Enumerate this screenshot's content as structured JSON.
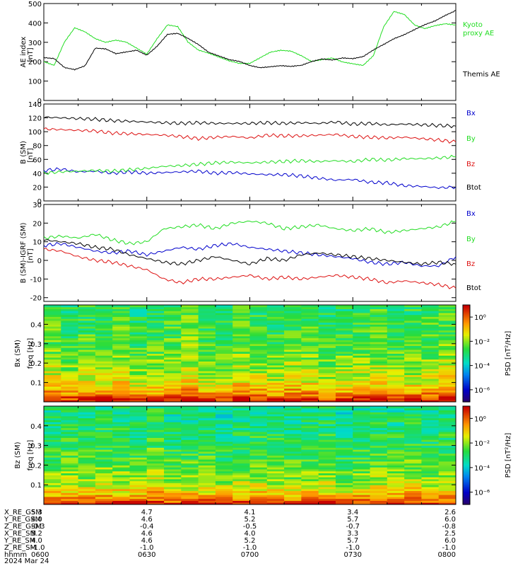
{
  "footer": {
    "rows": [
      {
        "label": "X_RE_GSM",
        "values": [
          "5.3",
          "4.7",
          "4.1",
          "3.4",
          "2.6"
        ]
      },
      {
        "label": "Y_RE_GSM",
        "values": [
          "4.0",
          "4.6",
          "5.2",
          "5.7",
          "6.0"
        ]
      },
      {
        "label": "Z_RE_GSM",
        "values": [
          "-0.3",
          "-0.4",
          "-0.5",
          "-0.7",
          "-0.8"
        ]
      },
      {
        "label": "X_RE_SM",
        "values": [
          "5.2",
          "4.6",
          "4.0",
          "3.3",
          "2.5"
        ]
      },
      {
        "label": "Y_RE_SM",
        "values": [
          "4.0",
          "4.6",
          "5.2",
          "5.7",
          "6.0"
        ]
      },
      {
        "label": "Z_RE_SM",
        "values": [
          "-1.0",
          "-1.0",
          "-1.0",
          "-1.0",
          "-1.0"
        ]
      },
      {
        "label": "hhmm",
        "values": [
          "0600",
          "0630",
          "0700",
          "0730",
          "0800"
        ]
      }
    ],
    "date": "2024 Mar 24"
  },
  "colors": {
    "black": "#000000",
    "green": "#22dd22",
    "red": "#dd1111",
    "blue": "#0000cc"
  },
  "chart_data": [
    {
      "type": "line",
      "ylabel": "AE index",
      "yunits": "[nT]",
      "ylim": [
        0,
        500
      ],
      "yticks": [
        "0",
        "100",
        "200",
        "300",
        "400",
        "500"
      ],
      "x_range_minutes": [
        0,
        120
      ],
      "series": [
        {
          "name": "Kyoto proxy AE",
          "legend_lines": [
            "Kyoto",
            "proxy AE"
          ],
          "color": "#22dd22",
          "x": [
            0,
            3,
            6,
            9,
            12,
            15,
            18,
            21,
            24,
            27,
            30,
            33,
            36,
            39,
            42,
            45,
            48,
            51,
            54,
            57,
            60,
            63,
            66,
            69,
            72,
            75,
            78,
            81,
            84,
            87,
            90,
            93,
            96,
            99,
            102,
            105,
            108,
            111,
            114,
            117,
            120
          ],
          "y": [
            200,
            180,
            300,
            375,
            355,
            320,
            300,
            310,
            300,
            270,
            240,
            320,
            390,
            380,
            300,
            260,
            245,
            225,
            205,
            190,
            190,
            220,
            250,
            260,
            255,
            230,
            200,
            210,
            220,
            200,
            190,
            180,
            230,
            380,
            460,
            445,
            390,
            370,
            385,
            395,
            390
          ]
        },
        {
          "name": "Themis AE",
          "legend_lines": [
            "Themis AE"
          ],
          "color": "#000000",
          "x": [
            0,
            3,
            6,
            9,
            12,
            15,
            18,
            21,
            24,
            27,
            30,
            33,
            36,
            39,
            42,
            45,
            48,
            51,
            54,
            57,
            60,
            63,
            66,
            69,
            72,
            75,
            78,
            81,
            84,
            87,
            90,
            93,
            96,
            99,
            102,
            105,
            108,
            111,
            114,
            117,
            120
          ],
          "y": [
            220,
            215,
            170,
            160,
            180,
            270,
            265,
            240,
            250,
            260,
            235,
            280,
            340,
            345,
            320,
            290,
            250,
            230,
            210,
            200,
            180,
            170,
            175,
            180,
            175,
            180,
            200,
            215,
            210,
            220,
            215,
            225,
            260,
            290,
            320,
            340,
            365,
            390,
            410,
            440,
            465
          ]
        }
      ]
    },
    {
      "type": "line",
      "ylabel": "B (SM)",
      "yunits": "[nT]",
      "ylim": [
        0,
        140
      ],
      "yticks": [
        "0",
        "20",
        "40",
        "60",
        "80",
        "100",
        "120",
        "140"
      ],
      "x_range_minutes": [
        0,
        120
      ],
      "series": [
        {
          "name": "Bx",
          "color": "#0000cc",
          "x": [
            0,
            5,
            10,
            15,
            20,
            25,
            30,
            35,
            40,
            45,
            50,
            55,
            60,
            65,
            70,
            75,
            80,
            85,
            90,
            95,
            100,
            105,
            110,
            115,
            120
          ],
          "y": [
            44,
            46,
            42,
            43,
            40,
            42,
            40,
            41,
            42,
            43,
            40,
            41,
            39,
            38,
            38,
            36,
            33,
            30,
            31,
            27,
            26,
            22,
            21,
            19,
            20
          ]
        },
        {
          "name": "By",
          "color": "#22dd22",
          "x": [
            0,
            5,
            10,
            15,
            20,
            25,
            30,
            35,
            40,
            45,
            50,
            55,
            60,
            65,
            70,
            75,
            80,
            85,
            90,
            95,
            100,
            105,
            110,
            115,
            120
          ],
          "y": [
            40,
            42,
            43,
            44,
            43,
            45,
            47,
            50,
            51,
            53,
            55,
            56,
            55,
            56,
            57,
            58,
            57,
            58,
            57,
            60,
            59,
            61,
            61,
            62,
            64
          ]
        },
        {
          "name": "Bz",
          "color": "#dd1111",
          "x": [
            0,
            5,
            10,
            15,
            20,
            25,
            30,
            35,
            40,
            45,
            50,
            55,
            60,
            65,
            70,
            75,
            80,
            85,
            90,
            95,
            100,
            105,
            110,
            115,
            120
          ],
          "y": [
            104,
            103,
            102,
            101,
            98,
            97,
            96,
            95,
            93,
            90,
            92,
            93,
            91,
            95,
            94,
            94,
            95,
            96,
            93,
            92,
            91,
            92,
            90,
            88,
            85
          ]
        },
        {
          "name": "Btot",
          "color": "#000000",
          "x": [
            0,
            5,
            10,
            15,
            20,
            25,
            30,
            35,
            40,
            45,
            50,
            55,
            60,
            65,
            70,
            75,
            80,
            85,
            90,
            95,
            100,
            105,
            110,
            115,
            120
          ],
          "y": [
            121,
            120,
            119,
            118,
            116,
            115,
            114,
            113,
            112,
            113,
            112,
            112,
            112,
            113,
            112,
            113,
            112,
            114,
            111,
            112,
            110,
            111,
            110,
            109,
            108
          ]
        }
      ]
    },
    {
      "type": "line",
      "ylabel": "B (SM)-IGRF (SM)",
      "yunits": "[nT]",
      "ylim": [
        -22,
        30
      ],
      "yticks": [
        "-20",
        "-10",
        "0",
        "10",
        "20",
        "30"
      ],
      "x_range_minutes": [
        0,
        120
      ],
      "series": [
        {
          "name": "Bx",
          "color": "#0000cc",
          "x": [
            0,
            5,
            10,
            15,
            20,
            25,
            30,
            35,
            40,
            45,
            50,
            55,
            60,
            65,
            70,
            75,
            80,
            85,
            90,
            95,
            100,
            105,
            110,
            115,
            120
          ],
          "y": [
            8,
            9,
            7,
            5,
            4,
            5,
            3,
            5,
            7,
            6,
            8,
            9,
            7,
            6,
            5,
            4,
            3,
            2,
            1,
            -1,
            -2,
            -1,
            -3,
            -3,
            2
          ]
        },
        {
          "name": "By",
          "color": "#22dd22",
          "x": [
            0,
            5,
            10,
            15,
            20,
            25,
            30,
            35,
            40,
            45,
            50,
            55,
            60,
            65,
            70,
            75,
            80,
            85,
            90,
            95,
            100,
            105,
            110,
            115,
            120
          ],
          "y": [
            12,
            13,
            12,
            14,
            11,
            9,
            10,
            17,
            18,
            19,
            17,
            20,
            21,
            20,
            17,
            18,
            19,
            17,
            16,
            17,
            15,
            16,
            17,
            18,
            21
          ]
        },
        {
          "name": "Bz",
          "color": "#dd1111",
          "x": [
            0,
            5,
            10,
            15,
            20,
            25,
            30,
            35,
            40,
            45,
            50,
            55,
            60,
            65,
            70,
            75,
            80,
            85,
            90,
            95,
            100,
            105,
            110,
            115,
            120
          ],
          "y": [
            6,
            5,
            2,
            0,
            -1,
            -3,
            -5,
            -10,
            -12,
            -10,
            -10,
            -9,
            -8,
            -10,
            -9,
            -10,
            -9,
            -8,
            -9,
            -10,
            -12,
            -11,
            -12,
            -13,
            -15
          ]
        },
        {
          "name": "Btot",
          "color": "#000000",
          "x": [
            0,
            5,
            10,
            15,
            20,
            25,
            30,
            35,
            40,
            45,
            50,
            55,
            60,
            65,
            70,
            75,
            80,
            85,
            90,
            95,
            100,
            105,
            110,
            115,
            120
          ],
          "y": [
            11,
            10,
            9,
            7,
            6,
            3,
            1,
            -1,
            -2,
            0,
            2,
            0,
            -2,
            1,
            0,
            3,
            4,
            3,
            2,
            1,
            0,
            -1,
            -2,
            -1,
            -2
          ]
        }
      ]
    },
    {
      "type": "heatmap",
      "ylabel": "Bx (SM)",
      "yunits": "freq [Hz]",
      "ylim": [
        0,
        0.5
      ],
      "yticks": [
        "0.1",
        "0.2",
        "0.3",
        "0.4"
      ],
      "colorbar": {
        "label": "PSD [nT²/Hz]",
        "ticks": [
          "10⁰",
          "10⁻²",
          "10⁻⁴",
          "10⁻⁶"
        ],
        "log_range": [
          -7,
          1
        ]
      },
      "columns": 24,
      "rows": 50,
      "column_offsets": [
        0.2,
        -0.1,
        0.1,
        0.0,
        0.3,
        -0.2,
        0.0,
        0.1,
        0.4,
        0.0,
        -0.1,
        0.2,
        0.0,
        -0.1,
        0.2,
        0.1,
        -0.2,
        0.0,
        0.1,
        0.2,
        -0.1,
        0.0,
        0.1,
        0.3
      ],
      "profile_freq_hz": [
        0.0,
        0.02,
        0.05,
        0.1,
        0.15,
        0.2,
        0.3,
        0.4,
        0.5
      ],
      "profile_log_psd": [
        1.0,
        0.3,
        -0.6,
        -1.4,
        -1.8,
        -2.1,
        -2.5,
        -2.7,
        -2.9
      ]
    },
    {
      "type": "heatmap",
      "ylabel": "Bz (SM)",
      "yunits": "freq [Hz]",
      "ylim": [
        0,
        0.5
      ],
      "yticks": [
        "0.1",
        "0.2",
        "0.3",
        "0.4"
      ],
      "colorbar": {
        "label": "PSD [nT²/Hz]",
        "ticks": [
          "10⁰",
          "10⁻²",
          "10⁻⁴",
          "10⁻⁶"
        ],
        "log_range": [
          -7,
          1
        ]
      },
      "columns": 24,
      "rows": 50,
      "column_offsets": [
        0.0,
        0.1,
        -0.1,
        0.2,
        0.1,
        0.0,
        0.3,
        -0.1,
        0.0,
        0.1,
        -0.2,
        0.0,
        0.1,
        0.0,
        -0.1,
        0.0,
        0.1,
        -0.2,
        0.0,
        0.1,
        0.0,
        0.2,
        -0.1,
        0.1
      ],
      "profile_freq_hz": [
        0.0,
        0.02,
        0.05,
        0.1,
        0.15,
        0.2,
        0.3,
        0.4,
        0.5
      ],
      "profile_log_psd": [
        0.8,
        0.0,
        -0.9,
        -1.7,
        -2.1,
        -2.4,
        -2.8,
        -3.1,
        -3.3
      ]
    }
  ]
}
